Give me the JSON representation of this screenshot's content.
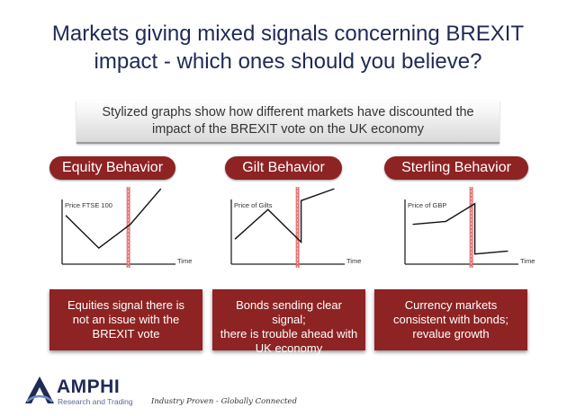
{
  "title_line1": "Markets giving mixed signals concerning BREXIT",
  "title_line2": "impact - which ones should you believe?",
  "subtitle_line1": "Stylized graphs show how different markets have discounted the",
  "subtitle_line2": "impact of the BREXIT vote on the UK economy",
  "accent_color": "#8e2323",
  "title_color": "#1f2a55",
  "vote_line_color": "#e46b6b",
  "panels": [
    {
      "heading": "Equity Behavior",
      "chart_data": {
        "type": "line",
        "ylabel": "Price FTSE 100",
        "xlabel": "Time",
        "series": [
          {
            "points": [
              [
                0,
                0.7
              ],
              [
                0.4,
                0.15
              ],
              [
                0.78,
                0.55
              ],
              [
                1.15,
                1.15
              ]
            ]
          }
        ]
      },
      "card_lines": [
        "Equities signal there is",
        "not an issue with the",
        "BREXIT vote"
      ]
    },
    {
      "heading": "Gilt Behavior",
      "chart_data": {
        "type": "line",
        "ylabel": "Price of Gilts",
        "xlabel": "Time",
        "series": [
          {
            "points": [
              [
                0,
                0.3
              ],
              [
                0.4,
                0.8
              ],
              [
                0.8,
                0.25
              ],
              [
                0.8,
                0.95
              ],
              [
                1.2,
                1.15
              ]
            ]
          }
        ]
      },
      "card_lines": [
        "Bonds sending clear signal;",
        "there is trouble ahead with",
        "UK economy"
      ]
    },
    {
      "heading": "Sterling Behavior",
      "chart_data": {
        "type": "line",
        "ylabel": "Price of GBP",
        "xlabel": "Time",
        "series": [
          {
            "points": [
              [
                0.05,
                0.55
              ],
              [
                0.45,
                0.6
              ],
              [
                0.8,
                0.9
              ],
              [
                0.8,
                0.05
              ],
              [
                1.2,
                0.1
              ]
            ]
          }
        ]
      },
      "card_lines": [
        "Currency markets",
        "consistent with bonds;",
        "revalue growth"
      ]
    }
  ],
  "footer": {
    "brand": "AMPHI",
    "brand_sub": "Research and Trading",
    "tagline": "Industry Proven - Globally Connected",
    "logo_icon": "amphi-logo-icon"
  }
}
